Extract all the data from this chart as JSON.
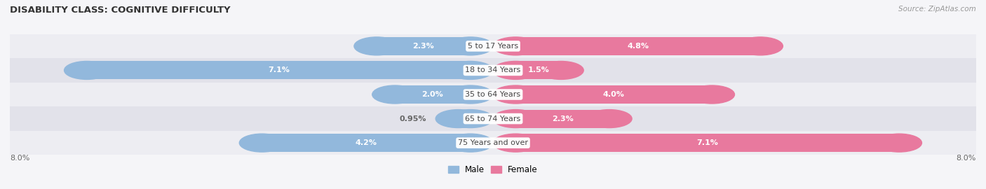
{
  "title": "DISABILITY CLASS: COGNITIVE DIFFICULTY",
  "source": "Source: ZipAtlas.com",
  "categories": [
    "5 to 17 Years",
    "18 to 34 Years",
    "35 to 64 Years",
    "65 to 74 Years",
    "75 Years and over"
  ],
  "male_values": [
    2.3,
    7.1,
    2.0,
    0.95,
    4.2
  ],
  "female_values": [
    4.8,
    1.5,
    4.0,
    2.3,
    7.1
  ],
  "male_color": "#92b8dc",
  "female_color": "#e8799e",
  "row_bg_light": "#ededf2",
  "row_bg_dark": "#e2e2ea",
  "max_val": 8.0,
  "x_min": -8.0,
  "x_max": 8.0,
  "label_color": "#666666",
  "title_color": "#333333",
  "value_color_inside": "#ffffff",
  "value_color_outside": "#666666",
  "bg_color": "#f5f5f8"
}
